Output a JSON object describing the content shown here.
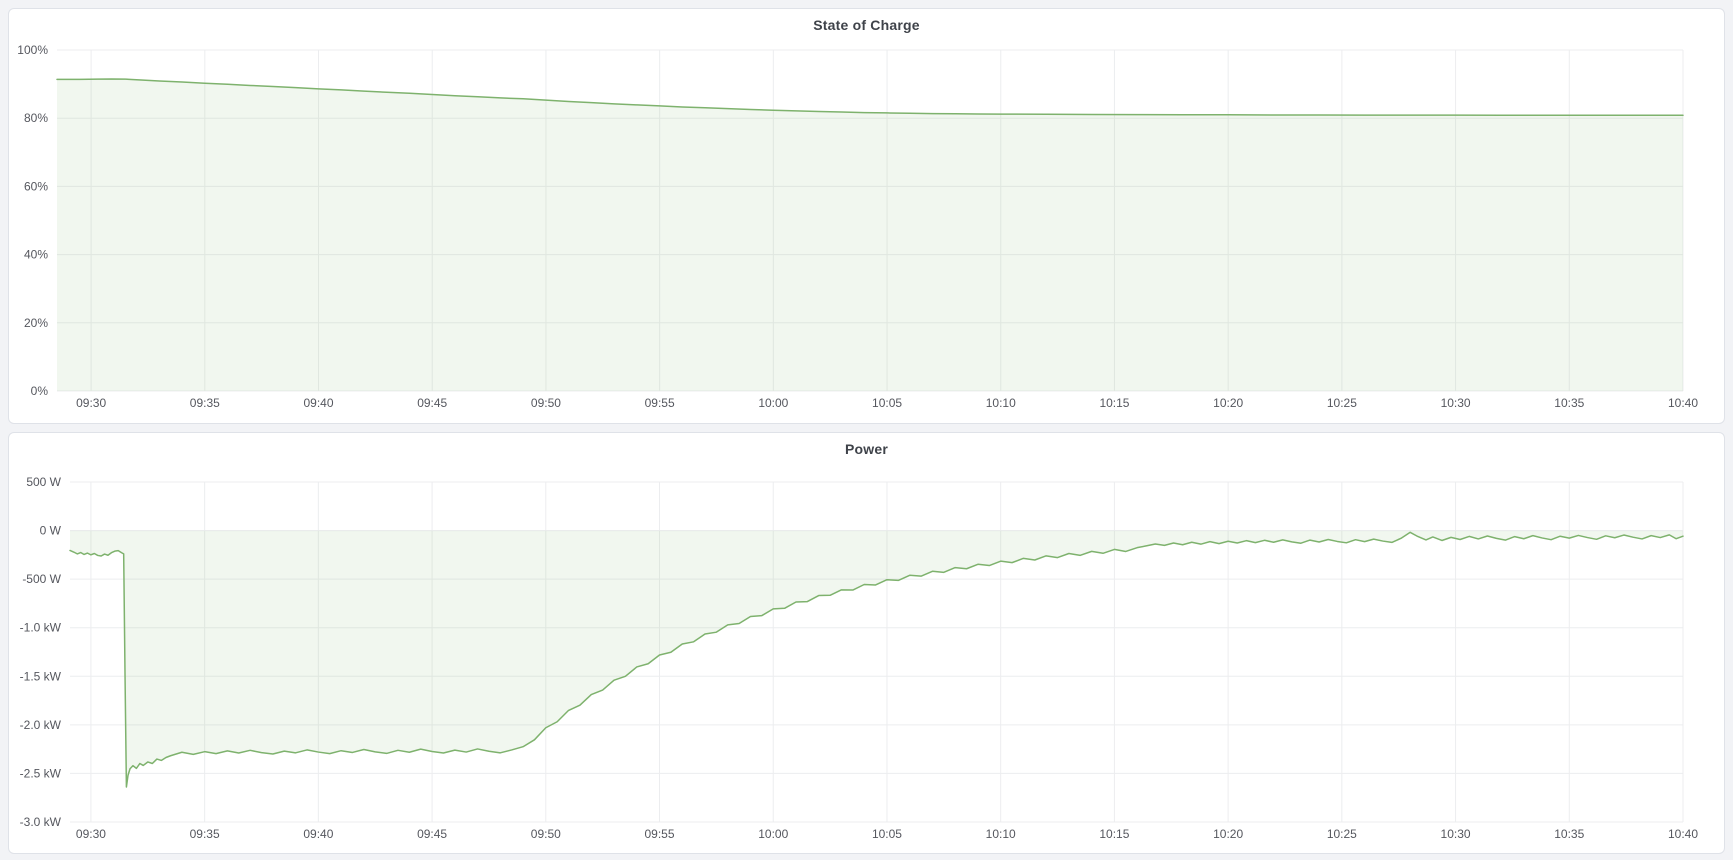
{
  "colors": {
    "page_bg": "#f2f3f6",
    "panel_bg": "#ffffff",
    "panel_border": "#dfe2e8",
    "title_text": "#3f434a",
    "axis_text": "#55575e",
    "grid": "#ecedef",
    "line": "#7eb26d",
    "fill": "rgba(126,178,109,0.11)"
  },
  "chart_data": [
    {
      "type": "area",
      "title": "State of Charge",
      "ylabel": "",
      "xlabel": "",
      "unit": "percent",
      "x_unit": "minutes after 09:30",
      "xlim": [
        -1.5,
        70
      ],
      "ylim": [
        0,
        100
      ],
      "grid": true,
      "legend": "none",
      "yticks": [
        {
          "v": 0,
          "label": "0%"
        },
        {
          "v": 20,
          "label": "20%"
        },
        {
          "v": 40,
          "label": "40%"
        },
        {
          "v": 60,
          "label": "60%"
        },
        {
          "v": 80,
          "label": "80%"
        },
        {
          "v": 100,
          "label": "100%"
        }
      ],
      "xticks": [
        {
          "t": 0,
          "label": "09:30"
        },
        {
          "t": 5,
          "label": "09:35"
        },
        {
          "t": 10,
          "label": "09:40"
        },
        {
          "t": 15,
          "label": "09:45"
        },
        {
          "t": 20,
          "label": "09:50"
        },
        {
          "t": 25,
          "label": "09:55"
        },
        {
          "t": 30,
          "label": "10:00"
        },
        {
          "t": 35,
          "label": "10:05"
        },
        {
          "t": 40,
          "label": "10:10"
        },
        {
          "t": 45,
          "label": "10:15"
        },
        {
          "t": 50,
          "label": "10:20"
        },
        {
          "t": 55,
          "label": "10:25"
        },
        {
          "t": 60,
          "label": "10:30"
        },
        {
          "t": 65,
          "label": "10:35"
        },
        {
          "t": 70,
          "label": "10:40"
        }
      ],
      "points": [
        [
          -1.5,
          91.4
        ],
        [
          -0.5,
          91.4
        ],
        [
          0.3,
          91.45
        ],
        [
          0.9,
          91.5
        ],
        [
          1.5,
          91.45
        ],
        [
          2.2,
          91.2
        ],
        [
          3,
          90.9
        ],
        [
          4,
          90.6
        ],
        [
          5,
          90.25
        ],
        [
          6,
          89.95
        ],
        [
          7,
          89.6
        ],
        [
          8,
          89.3
        ],
        [
          9,
          88.95
        ],
        [
          10,
          88.6
        ],
        [
          11,
          88.3
        ],
        [
          12,
          87.95
        ],
        [
          13,
          87.6
        ],
        [
          14,
          87.3
        ],
        [
          15,
          86.95
        ],
        [
          16,
          86.6
        ],
        [
          17,
          86.3
        ],
        [
          18,
          85.95
        ],
        [
          19,
          85.7
        ],
        [
          20,
          85.3
        ],
        [
          21,
          84.9
        ],
        [
          22,
          84.55
        ],
        [
          23,
          84.2
        ],
        [
          24,
          83.9
        ],
        [
          25,
          83.6
        ],
        [
          26,
          83.3
        ],
        [
          27,
          83.05
        ],
        [
          28,
          82.8
        ],
        [
          29,
          82.55
        ],
        [
          30,
          82.35
        ],
        [
          31,
          82.15
        ],
        [
          32,
          81.95
        ],
        [
          33,
          81.8
        ],
        [
          34,
          81.65
        ],
        [
          35,
          81.55
        ],
        [
          36,
          81.45
        ],
        [
          37,
          81.35
        ],
        [
          38,
          81.3
        ],
        [
          39,
          81.25
        ],
        [
          40,
          81.2
        ],
        [
          42,
          81.15
        ],
        [
          44,
          81.1
        ],
        [
          46,
          81.05
        ],
        [
          48,
          81.0
        ],
        [
          50,
          81.0
        ],
        [
          52,
          80.95
        ],
        [
          54,
          80.95
        ],
        [
          56,
          80.9
        ],
        [
          58,
          80.9
        ],
        [
          60,
          80.9
        ],
        [
          62,
          80.85
        ],
        [
          64,
          80.85
        ],
        [
          66,
          80.85
        ],
        [
          68,
          80.85
        ],
        [
          70,
          80.85
        ]
      ]
    },
    {
      "type": "area",
      "title": "Power",
      "ylabel": "",
      "xlabel": "",
      "unit": "watt",
      "x_unit": "minutes after 09:30",
      "xlim": [
        -0.92,
        70
      ],
      "ylim": [
        -3000,
        500
      ],
      "grid": true,
      "legend": "none",
      "yticks": [
        {
          "v": 500,
          "label": "500 W"
        },
        {
          "v": 0,
          "label": "0 W"
        },
        {
          "v": -500,
          "label": "-500 W"
        },
        {
          "v": -1000,
          "label": "-1.0 kW"
        },
        {
          "v": -1500,
          "label": "-1.5 kW"
        },
        {
          "v": -2000,
          "label": "-2.0 kW"
        },
        {
          "v": -2500,
          "label": "-2.5 kW"
        },
        {
          "v": -3000,
          "label": "-3.0 kW"
        }
      ],
      "xticks": [
        {
          "t": 0,
          "label": "09:30"
        },
        {
          "t": 5,
          "label": "09:35"
        },
        {
          "t": 10,
          "label": "09:40"
        },
        {
          "t": 15,
          "label": "09:45"
        },
        {
          "t": 20,
          "label": "09:50"
        },
        {
          "t": 25,
          "label": "09:55"
        },
        {
          "t": 30,
          "label": "10:00"
        },
        {
          "t": 35,
          "label": "10:05"
        },
        {
          "t": 40,
          "label": "10:10"
        },
        {
          "t": 45,
          "label": "10:15"
        },
        {
          "t": 50,
          "label": "10:20"
        },
        {
          "t": 55,
          "label": "10:25"
        },
        {
          "t": 60,
          "label": "10:30"
        },
        {
          "t": 65,
          "label": "10:35"
        },
        {
          "t": 70,
          "label": "10:40"
        }
      ],
      "points": [
        [
          -0.92,
          -205
        ],
        [
          -0.75,
          -222
        ],
        [
          -0.6,
          -240
        ],
        [
          -0.45,
          -226
        ],
        [
          -0.3,
          -246
        ],
        [
          -0.15,
          -232
        ],
        [
          0,
          -250
        ],
        [
          0.15,
          -236
        ],
        [
          0.3,
          -256
        ],
        [
          0.45,
          -262
        ],
        [
          0.6,
          -242
        ],
        [
          0.75,
          -254
        ],
        [
          0.9,
          -228
        ],
        [
          1.05,
          -212
        ],
        [
          1.2,
          -206
        ],
        [
          1.35,
          -228
        ],
        [
          1.44,
          -240
        ],
        [
          1.5,
          -1500
        ],
        [
          1.56,
          -2640
        ],
        [
          1.63,
          -2520
        ],
        [
          1.72,
          -2452
        ],
        [
          1.85,
          -2420
        ],
        [
          2,
          -2448
        ],
        [
          2.15,
          -2398
        ],
        [
          2.3,
          -2418
        ],
        [
          2.5,
          -2382
        ],
        [
          2.7,
          -2398
        ],
        [
          2.9,
          -2352
        ],
        [
          3.1,
          -2366
        ],
        [
          3.3,
          -2336
        ],
        [
          3.5,
          -2318
        ],
        [
          4,
          -2282
        ],
        [
          4.5,
          -2304
        ],
        [
          5,
          -2276
        ],
        [
          5.5,
          -2296
        ],
        [
          6,
          -2268
        ],
        [
          6.5,
          -2290
        ],
        [
          7,
          -2262
        ],
        [
          7.5,
          -2286
        ],
        [
          8,
          -2300
        ],
        [
          8.5,
          -2270
        ],
        [
          9,
          -2288
        ],
        [
          9.5,
          -2258
        ],
        [
          10,
          -2280
        ],
        [
          10.5,
          -2296
        ],
        [
          11,
          -2266
        ],
        [
          11.5,
          -2284
        ],
        [
          12,
          -2254
        ],
        [
          12.5,
          -2278
        ],
        [
          13,
          -2294
        ],
        [
          13.5,
          -2262
        ],
        [
          14,
          -2282
        ],
        [
          14.5,
          -2250
        ],
        [
          15,
          -2274
        ],
        [
          15.5,
          -2290
        ],
        [
          16,
          -2260
        ],
        [
          16.5,
          -2280
        ],
        [
          17,
          -2248
        ],
        [
          17.5,
          -2272
        ],
        [
          18,
          -2288
        ],
        [
          18.5,
          -2258
        ],
        [
          19,
          -2225
        ],
        [
          19.5,
          -2154
        ],
        [
          20,
          -2030
        ],
        [
          20.5,
          -1968
        ],
        [
          21,
          -1851
        ],
        [
          21.5,
          -1798
        ],
        [
          22,
          -1688
        ],
        [
          22.5,
          -1642
        ],
        [
          23,
          -1540
        ],
        [
          23.5,
          -1500
        ],
        [
          24,
          -1404
        ],
        [
          24.5,
          -1371
        ],
        [
          25,
          -1281
        ],
        [
          25.5,
          -1253
        ],
        [
          26,
          -1168
        ],
        [
          26.5,
          -1145
        ],
        [
          27,
          -1065
        ],
        [
          27.5,
          -1046
        ],
        [
          28,
          -971
        ],
        [
          28.5,
          -957
        ],
        [
          29,
          -885
        ],
        [
          29.5,
          -875
        ],
        [
          30,
          -806
        ],
        [
          30.5,
          -800
        ],
        [
          31,
          -735
        ],
        [
          31.5,
          -731
        ],
        [
          32,
          -669
        ],
        [
          32.5,
          -666
        ],
        [
          33,
          -610
        ],
        [
          33.5,
          -612
        ],
        [
          34,
          -555
        ],
        [
          34.5,
          -560
        ],
        [
          35,
          -506
        ],
        [
          35.5,
          -513
        ],
        [
          36,
          -460
        ],
        [
          36.5,
          -469
        ],
        [
          37,
          -419
        ],
        [
          37.5,
          -430
        ],
        [
          38,
          -381
        ],
        [
          38.5,
          -393
        ],
        [
          39,
          -347
        ],
        [
          39.5,
          -360
        ],
        [
          40,
          -315
        ],
        [
          40.5,
          -330
        ],
        [
          41,
          -286
        ],
        [
          41.5,
          -303
        ],
        [
          42,
          -260
        ],
        [
          42.5,
          -278
        ],
        [
          43,
          -236
        ],
        [
          43.5,
          -255
        ],
        [
          44,
          -214
        ],
        [
          44.5,
          -234
        ],
        [
          45,
          -194
        ],
        [
          45.5,
          -215
        ],
        [
          46,
          -176
        ],
        [
          46.4,
          -158
        ],
        [
          46.8,
          -138
        ],
        [
          47.2,
          -152
        ],
        [
          47.6,
          -128
        ],
        [
          48,
          -146
        ],
        [
          48.4,
          -120
        ],
        [
          48.8,
          -140
        ],
        [
          49.2,
          -114
        ],
        [
          49.6,
          -134
        ],
        [
          50,
          -110
        ],
        [
          50.4,
          -128
        ],
        [
          50.8,
          -104
        ],
        [
          51.2,
          -124
        ],
        [
          51.6,
          -100
        ],
        [
          52,
          -120
        ],
        [
          52.4,
          -96
        ],
        [
          52.8,
          -116
        ],
        [
          53.2,
          -130
        ],
        [
          53.6,
          -98
        ],
        [
          54,
          -118
        ],
        [
          54.4,
          -92
        ],
        [
          54.8,
          -112
        ],
        [
          55.2,
          -126
        ],
        [
          55.6,
          -94
        ],
        [
          56,
          -114
        ],
        [
          56.4,
          -88
        ],
        [
          56.8,
          -108
        ],
        [
          57.2,
          -122
        ],
        [
          57.6,
          -80
        ],
        [
          58,
          -18
        ],
        [
          58.3,
          -56
        ],
        [
          58.7,
          -96
        ],
        [
          59,
          -66
        ],
        [
          59.4,
          -102
        ],
        [
          59.8,
          -70
        ],
        [
          60.2,
          -92
        ],
        [
          60.6,
          -60
        ],
        [
          61,
          -86
        ],
        [
          61.4,
          -56
        ],
        [
          61.8,
          -80
        ],
        [
          62.2,
          -98
        ],
        [
          62.6,
          -62
        ],
        [
          63,
          -84
        ],
        [
          63.4,
          -52
        ],
        [
          63.8,
          -76
        ],
        [
          64.2,
          -94
        ],
        [
          64.6,
          -58
        ],
        [
          65,
          -78
        ],
        [
          65.4,
          -50
        ],
        [
          65.8,
          -72
        ],
        [
          66.2,
          -90
        ],
        [
          66.6,
          -54
        ],
        [
          67,
          -74
        ],
        [
          67.4,
          -46
        ],
        [
          67.8,
          -68
        ],
        [
          68.2,
          -86
        ],
        [
          68.6,
          -52
        ],
        [
          69,
          -72
        ],
        [
          69.4,
          -44
        ],
        [
          69.7,
          -84
        ],
        [
          70,
          -58
        ]
      ]
    }
  ]
}
